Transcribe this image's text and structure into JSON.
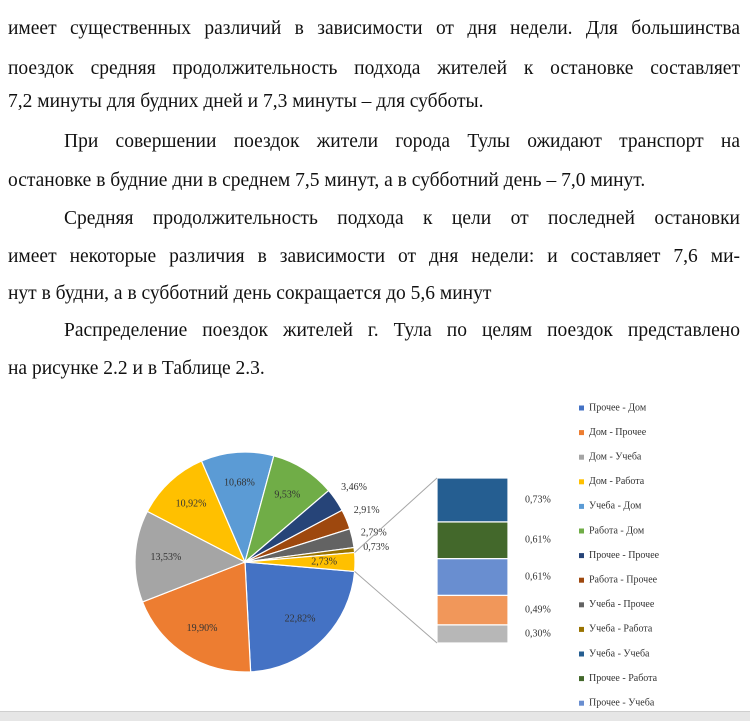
{
  "paragraphs": [
    {
      "lines": [
        "имеет существенных различий в зависимости от дня недели. Для большинства",
        "поездок средняя продолжительность подхода жителей к остановке составляет",
        "7,2 минуты для будних дней и 7,3 минуты – для субботы."
      ]
    },
    {
      "lines": [
        "При совершении поездок жители города Тулы ожидают транспорт на",
        "остановке в будние дни в среднем 7,5 минут, а в субботний день – 7,0 минут."
      ]
    },
    {
      "lines": [
        "Средняя продолжительность подхода к цели от последней остановки",
        "имеет некоторые различия в зависимости от дня недели: и составляет 7,6 ми-",
        "нут в будни, а в субботний день сокращается до 5,6 минут"
      ]
    },
    {
      "lines": [
        "Распределение поездок жителей г. Тула по целям поездок представлено",
        "на рисунке 2.2 и в Таблице 2.3."
      ]
    }
  ],
  "chart_data": {
    "type": "pie",
    "slices": [
      {
        "name": "Прочее - Дом",
        "value": 22.82,
        "value_label": "22,82%",
        "color": "#4472c4"
      },
      {
        "name": "Дом - Прочее",
        "value": 19.9,
        "value_label": "19,90%",
        "color": "#ed7d31"
      },
      {
        "name": "Дом - Учеба",
        "value": 13.53,
        "value_label": "13,53%",
        "color": "#a5a5a5"
      },
      {
        "name": "Дом - Работа",
        "value": 10.92,
        "value_label": "10,92%",
        "color": "#ffc000"
      },
      {
        "name": "Учеба - Дом",
        "value": 10.68,
        "value_label": "10,68%",
        "color": "#5b9bd5"
      },
      {
        "name": "Работа - Дом",
        "value": 9.53,
        "value_label": "9,53%",
        "color": "#70ad47"
      },
      {
        "name": "Прочее - Прочее",
        "value": 3.46,
        "value_label": "3,46%",
        "color": "#264478"
      },
      {
        "name": "Работа - Прочее",
        "value": 2.91,
        "value_label": "2,91%",
        "color": "#9e480e"
      },
      {
        "name": "Учеба - Прочее",
        "value": 2.79,
        "value_label": "2,79%",
        "color": "#636363"
      },
      {
        "name": "Учеба - Работа",
        "value": 0.73,
        "value_label": "0,73%",
        "color": "#997300"
      },
      {
        "name": null,
        "value": 2.73,
        "value_label": "2,73%",
        "color": "#ffc000"
      }
    ],
    "bar": [
      {
        "name": "Учеба - Учеба",
        "value": 0.73,
        "value_label": "0,73%",
        "color": "#255e91"
      },
      {
        "name": "Прочее - Работа",
        "value": 0.61,
        "value_label": "0,61%",
        "color": "#43682b"
      },
      {
        "name": "Прочее - Учеба",
        "value": 0.61,
        "value_label": "0,61%",
        "color": "#698ed0"
      },
      {
        "name": null,
        "value": 0.49,
        "value_label": "0,49%",
        "color": "#f1975a"
      },
      {
        "name": null,
        "value": 0.3,
        "value_label": "0,30%",
        "color": "#b7b7b7"
      }
    ]
  }
}
